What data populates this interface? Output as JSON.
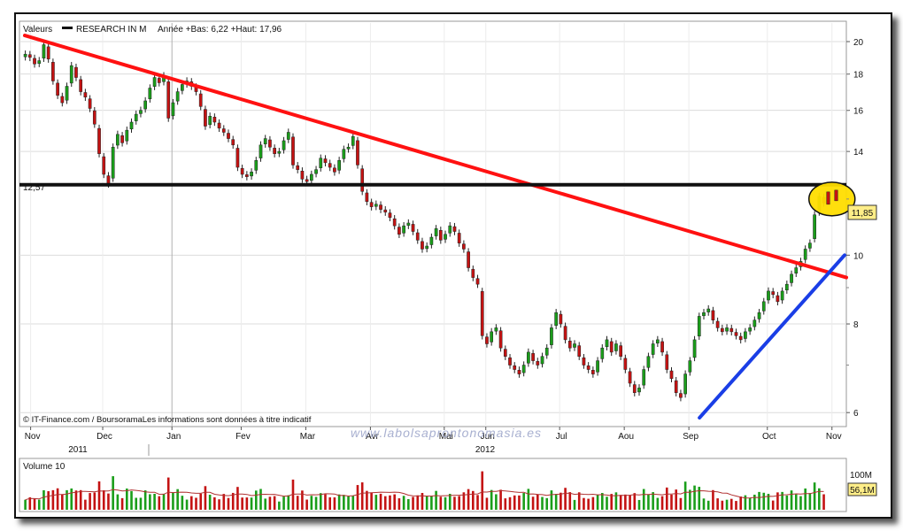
{
  "legend": {
    "prefix": "Valeurs",
    "name": "RESEARCH IN M",
    "range_text": "Année +Bas: 6,22 +Haut: 17,96"
  },
  "price_axis_ticks": [
    "20",
    "18",
    "16",
    "14",
    "10",
    "8",
    "6"
  ],
  "month_labels": [
    "Nov",
    "Dec",
    "Jan",
    "Fev",
    "Mar",
    "Avr",
    "Mai",
    "Jun",
    "Jul",
    "Aou",
    "Sep",
    "Oct",
    "Nov"
  ],
  "year_labels": [
    "2011",
    "2012"
  ],
  "support_label": "12,57",
  "last_price_badge": "11,85",
  "credit": "© IT-Finance.com / BoursoramaLes informations sont données à titre indicatif",
  "watermark": "www.labolsaprontonomasia.es",
  "volume": {
    "title": "Volume 10",
    "axis_label": "100M",
    "last_badge": "56,1M"
  },
  "colors": {
    "up": "#1a9e1a",
    "down": "#c41212",
    "resistance": "#ff1111",
    "support": "#111111",
    "uptrend": "#1a3ee6",
    "highlight": "#ffdd00",
    "badge": "#ffee88"
  },
  "chart_data": {
    "type": "candlestick",
    "ylim": [
      5.8,
      21
    ],
    "y_scale": "log",
    "months": [
      "Nov",
      "Dec",
      "Jan",
      "Fev",
      "Mar",
      "Avr",
      "Mai",
      "Jun",
      "Jul",
      "Aou",
      "Sep",
      "Oct",
      "Nov"
    ],
    "close_by_month": {
      "2011-11": [
        19.2,
        19.0,
        18.6,
        18.8,
        19.8,
        18.9,
        17.6,
        16.8,
        16.4,
        17.3,
        18.5,
        17.8,
        17.0,
        16.7,
        16.1,
        15.3
      ],
      "2011-12": [
        13.9,
        13.0,
        12.6,
        14.2,
        14.8,
        14.4,
        15.0,
        15.4,
        15.8,
        16.0,
        16.5,
        17.2,
        17.8,
        17.5,
        17.9
      ],
      "2012-01": [
        15.6,
        16.4,
        17.0,
        17.4,
        17.6,
        17.3,
        17.0,
        16.2,
        15.2,
        15.7,
        15.4,
        15.1,
        14.9,
        14.6,
        14.3
      ],
      "2012-02": [
        13.3,
        13.0,
        12.9,
        13.1,
        13.6,
        14.3,
        14.6,
        14.2,
        13.9,
        14.0,
        14.5,
        14.9,
        13.4,
        13.2
      ],
      "2012-03": [
        12.8,
        12.7,
        13.0,
        13.2,
        13.7,
        13.5,
        13.3,
        13.1,
        13.6,
        14.1,
        14.2,
        14.7,
        13.4,
        12.3
      ],
      "2012-04": [
        11.9,
        11.7,
        11.8,
        11.6,
        11.5,
        11.3,
        11.0,
        10.7,
        11.0,
        11.1,
        10.8,
        10.5,
        10.2,
        10.3,
        10.6,
        10.9
      ],
      "2012-05": [
        10.5,
        10.7,
        11.0,
        10.8,
        10.4,
        10.2,
        9.6,
        9.3,
        9.1
      ],
      "2012-06": [
        7.7,
        7.5,
        7.8,
        7.9,
        7.4,
        7.2,
        7.0,
        6.9,
        6.8,
        7.0,
        7.3,
        7.1,
        7.0,
        7.2,
        7.4,
        7.9
      ],
      "2012-07": [
        8.3,
        8.0,
        7.6,
        7.4,
        7.5,
        7.2,
        7.0,
        6.9,
        6.8,
        7.1,
        7.4,
        7.6,
        7.3,
        7.5
      ],
      "2012-08": [
        7.2,
        6.9,
        6.6,
        6.4,
        6.5,
        6.9,
        7.2,
        7.5,
        7.6,
        7.3,
        6.9,
        6.7,
        6.4,
        6.3
      ],
      "2012-09": [
        6.8,
        7.1,
        7.6,
        8.2,
        8.3,
        8.4,
        8.1,
        7.9,
        7.8,
        7.9,
        7.8,
        7.7,
        7.6,
        7.8,
        7.9,
        8.1,
        8.3
      ],
      "2012-10": [
        8.6,
        8.9,
        8.8,
        8.6,
        8.9,
        9.1,
        9.4,
        9.6,
        9.8,
        10.2,
        10.4,
        11.4,
        12.1,
        11.85
      ]
    },
    "volume_series": {
      "name": "Volume 10",
      "unit": "M",
      "last": 56.1
    },
    "trendlines": [
      {
        "name": "resistance",
        "from": [
          "2011-11",
          20.4
        ],
        "to": [
          "2012-11",
          9.3
        ]
      },
      {
        "name": "support",
        "value": 12.57
      },
      {
        "name": "uptrend",
        "from": [
          "2012-09",
          5.9
        ],
        "to": [
          "2012-11",
          10.0
        ]
      }
    ],
    "highlight": {
      "period": "2012-11",
      "value": 12.0
    }
  }
}
